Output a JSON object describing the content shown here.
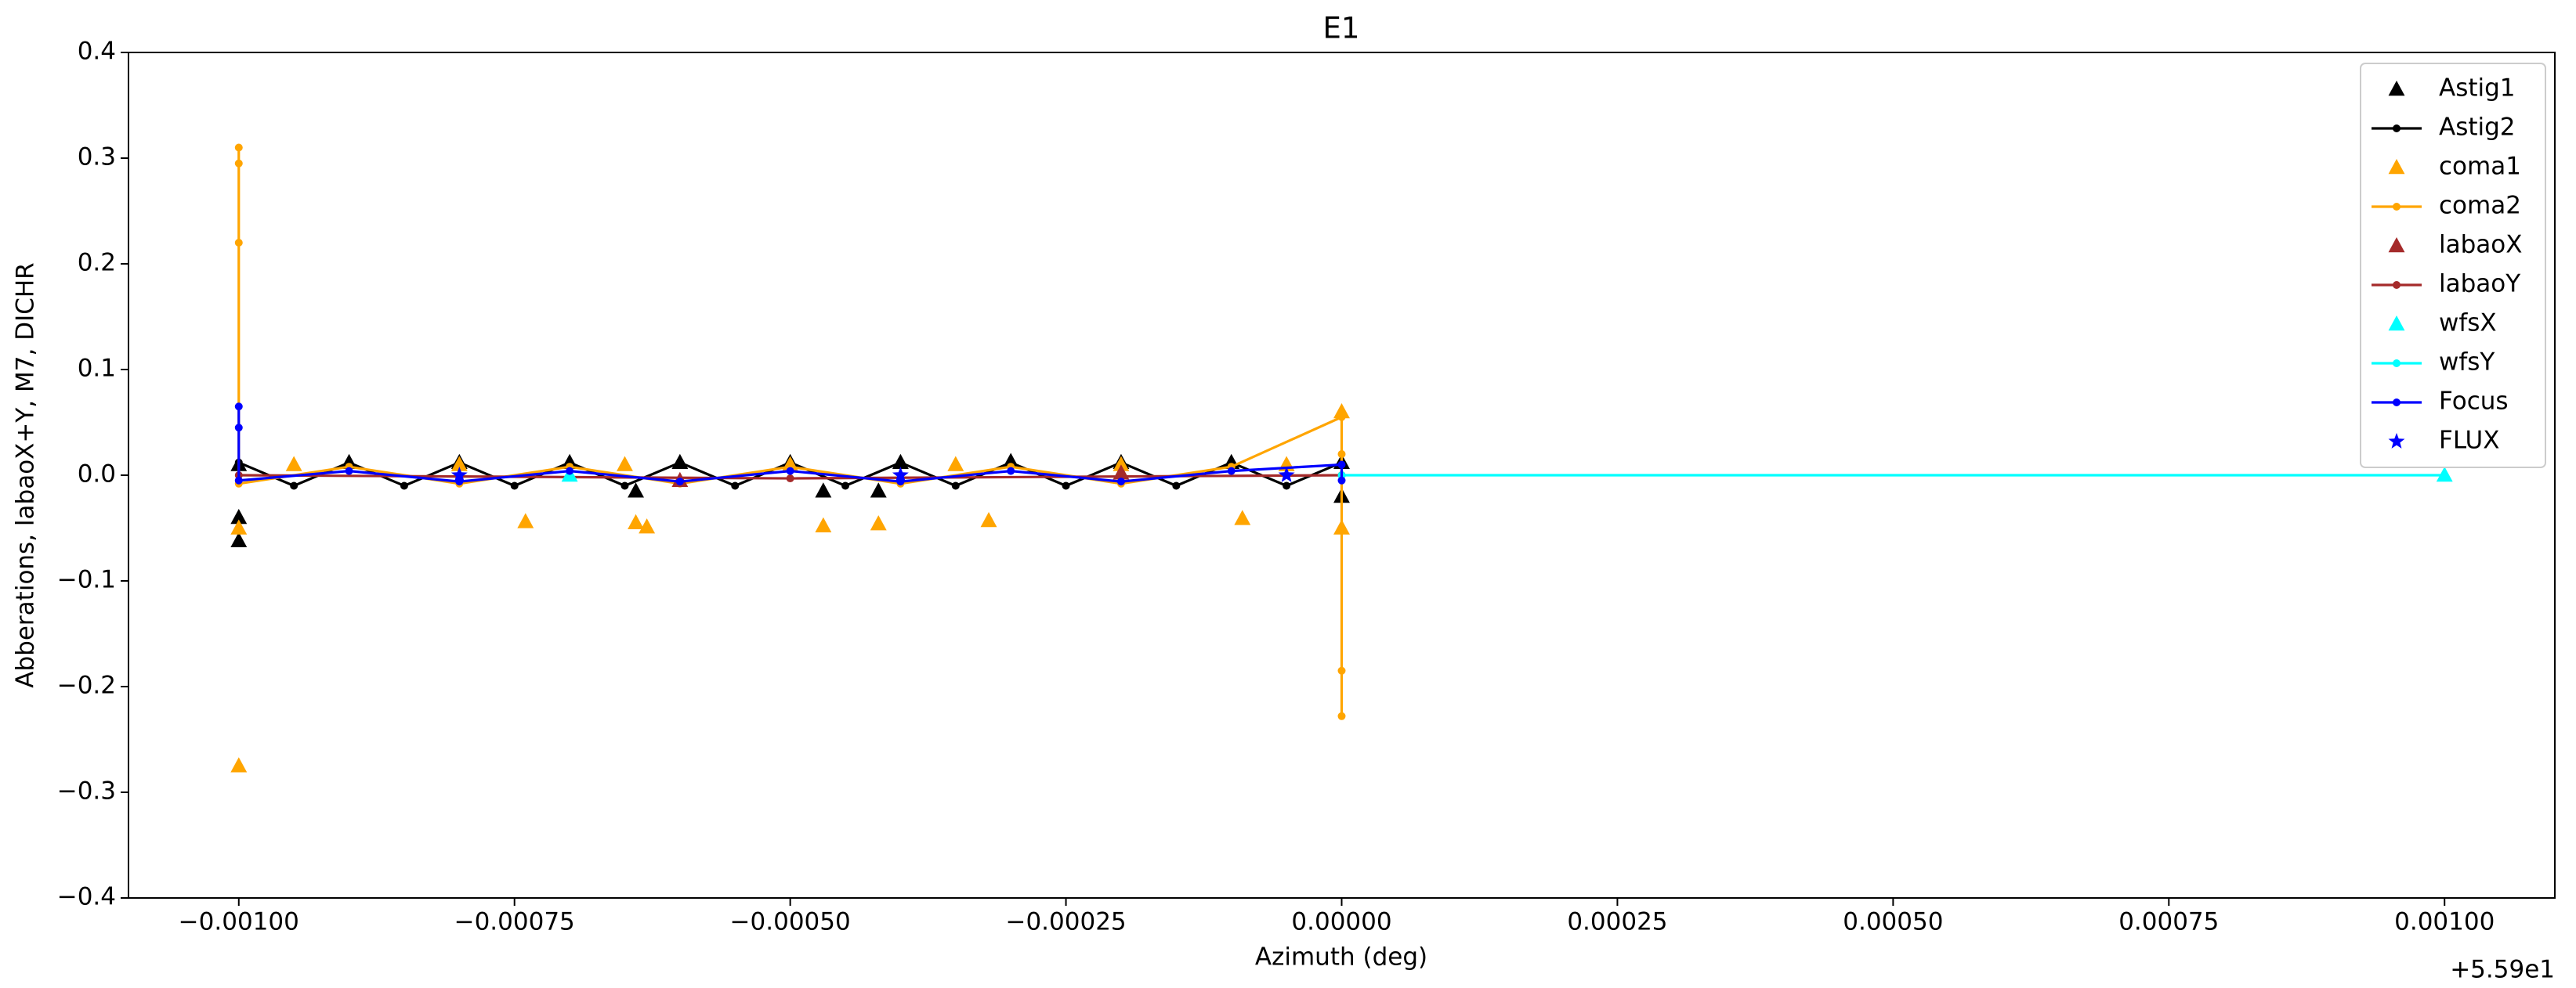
{
  "chart_data": {
    "type": "line",
    "title": "E1",
    "x_label": "Azimuth (deg)",
    "y_label": "Abberations, labaoX+Y, M7, DICHR",
    "x_offset_label": "+5.59e1",
    "xlim": [
      -0.0011,
      0.0011
    ],
    "xticks": [
      {
        "value": -0.001,
        "label": "−0.00100"
      },
      {
        "value": -0.00075,
        "label": "−0.00075"
      },
      {
        "value": -0.0005,
        "label": "−0.00050"
      },
      {
        "value": -0.00025,
        "label": "−0.00025"
      },
      {
        "value": 0,
        "label": "0.00000"
      },
      {
        "value": 0.00025,
        "label": "0.00025"
      },
      {
        "value": 0.0005,
        "label": "0.00050"
      },
      {
        "value": 0.00075,
        "label": "0.00075"
      },
      {
        "value": 0.001,
        "label": "0.00100"
      }
    ],
    "ylim": [
      -0.4,
      0.4
    ],
    "yticks": [
      {
        "value": -0.4,
        "label": "−0.4"
      },
      {
        "value": -0.3,
        "label": "−0.3"
      },
      {
        "value": -0.2,
        "label": "−0.2"
      },
      {
        "value": -0.1,
        "label": "−0.1"
      },
      {
        "value": 0,
        "label": "0.0"
      },
      0.1,
      0.2,
      0.3,
      0.4
    ],
    "grid": false,
    "legend": "upper right",
    "series": [
      {
        "name": "Astig1",
        "color": "#000000",
        "marker": "triangle",
        "linestyle": "none",
        "x": [
          -0.001,
          -0.001,
          -0.001,
          -0.0009,
          -0.0008,
          -0.0007,
          -0.0006,
          -0.00064,
          -0.0005,
          -0.00047,
          -0.0004,
          -0.00042,
          -0.0003,
          -0.0002,
          -0.0001,
          0,
          0
        ],
        "values": [
          -0.062,
          -0.04,
          0.01,
          0.012,
          0.012,
          0.012,
          0.012,
          -0.015,
          0.012,
          -0.015,
          0.012,
          -0.015,
          0.013,
          0.012,
          0.012,
          0.012,
          -0.02
        ]
      },
      {
        "name": "Astig2",
        "color": "#000000",
        "marker": "dot",
        "linestyle": "solid",
        "x": [
          -0.001,
          -0.00095,
          -0.0009,
          -0.00085,
          -0.0008,
          -0.00075,
          -0.0007,
          -0.00065,
          -0.0006,
          -0.00055,
          -0.0005,
          -0.00045,
          -0.0004,
          -0.00035,
          -0.0003,
          -0.00025,
          -0.0002,
          -0.00015,
          -0.0001,
          -5e-05,
          0
        ],
        "values": [
          0.012,
          -0.01,
          0.012,
          -0.01,
          0.012,
          -0.01,
          0.012,
          -0.01,
          0.012,
          -0.01,
          0.012,
          -0.01,
          0.012,
          -0.01,
          0.012,
          -0.01,
          0.012,
          -0.01,
          0.012,
          -0.01,
          0.012
        ]
      },
      {
        "name": "coma1",
        "color": "#ffa500",
        "marker": "triangle",
        "linestyle": "none",
        "x": [
          -0.001,
          -0.001,
          -0.00074,
          -0.00064,
          -0.00063,
          -0.00047,
          -0.00042,
          -0.00032,
          -9e-05,
          0,
          0,
          -0.00095,
          -0.0008,
          -0.00065,
          -0.0005,
          -0.00035,
          -0.0002,
          -5e-05
        ],
        "values": [
          -0.275,
          -0.05,
          -0.044,
          -0.045,
          -0.049,
          -0.048,
          -0.046,
          -0.043,
          -0.041,
          0.06,
          -0.05,
          0.01,
          0.01,
          0.01,
          0.01,
          0.01,
          0.01,
          0.01
        ]
      },
      {
        "name": "coma2",
        "color": "#ffa500",
        "marker": "dot",
        "linestyle": "solid",
        "x": [
          -0.001,
          -0.001,
          -0.001,
          -0.001,
          -0.0009,
          -0.0008,
          -0.0007,
          -0.0006,
          -0.0005,
          -0.0004,
          -0.0003,
          -0.0002,
          -0.0001,
          0,
          0,
          0,
          0,
          0
        ],
        "values": [
          0.31,
          0.22,
          0.295,
          -0.008,
          0.008,
          -0.008,
          0.008,
          -0.008,
          0.008,
          -0.008,
          0.008,
          -0.008,
          0.008,
          0.055,
          -0.228,
          -0.185,
          0.02,
          0
        ]
      },
      {
        "name": "labaoX",
        "color": "#a52a2a",
        "marker": "triangle",
        "linestyle": "none",
        "x": [
          -0.0006,
          -0.0002
        ],
        "values": [
          -0.005,
          0.002
        ]
      },
      {
        "name": "labaoY",
        "color": "#a52a2a",
        "marker": "dot",
        "linestyle": "solid",
        "x": [
          -0.001,
          -0.0005,
          0
        ],
        "values": [
          0,
          -0.003,
          0
        ]
      },
      {
        "name": "wfsX",
        "color": "#00ffff",
        "marker": "triangle",
        "linestyle": "none",
        "x": [
          -0.0007,
          0.001
        ],
        "values": [
          0,
          0
        ]
      },
      {
        "name": "wfsY",
        "color": "#00ffff",
        "marker": "dot",
        "linestyle": "solid",
        "x": [
          0,
          0.001
        ],
        "values": [
          0,
          0
        ]
      },
      {
        "name": "Focus",
        "color": "#0000ff",
        "marker": "dot",
        "linestyle": "solid",
        "x": [
          -0.001,
          -0.001,
          -0.001,
          -0.0009,
          -0.0008,
          -0.0007,
          -0.0006,
          -0.0005,
          -0.0004,
          -0.0003,
          -0.0002,
          -0.0001,
          0,
          0
        ],
        "values": [
          0.065,
          0.045,
          -0.005,
          0.004,
          -0.006,
          0.004,
          -0.006,
          0.004,
          -0.006,
          0.004,
          -0.006,
          0.004,
          0.01,
          -0.005
        ]
      },
      {
        "name": "FLUX",
        "color": "#0000ff",
        "marker": "star",
        "linestyle": "none",
        "x": [
          -0.0008,
          -0.0004,
          -5e-05
        ],
        "values": [
          0,
          0,
          0
        ]
      }
    ]
  }
}
